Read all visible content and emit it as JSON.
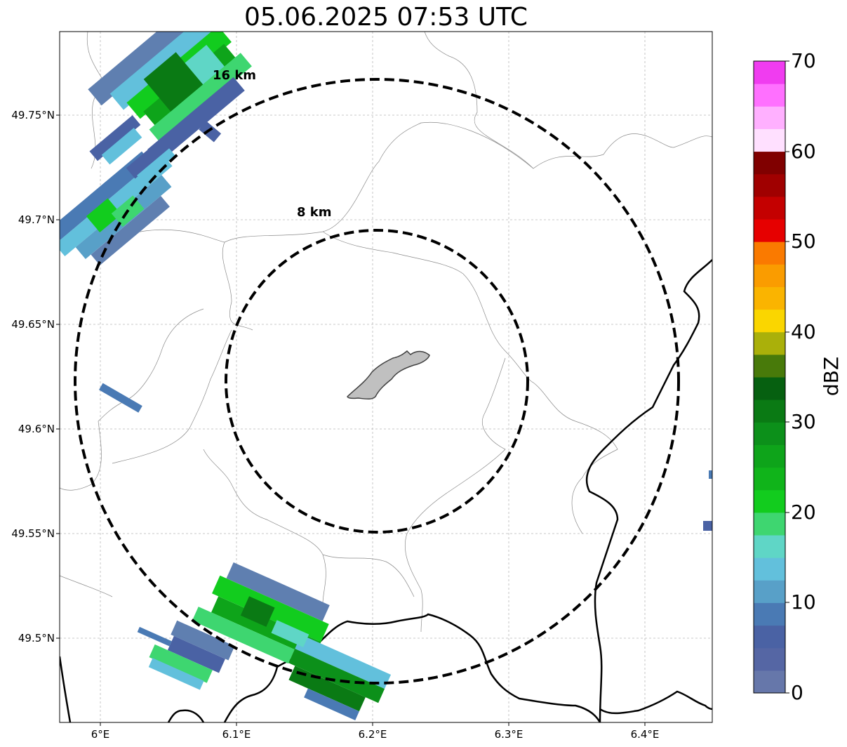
{
  "title": "05.06.2025 07:53 UTC",
  "map": {
    "lat_ticks": [
      "49.75°N",
      "49.7°N",
      "49.65°N",
      "49.6°N",
      "49.55°N",
      "49.5°N"
    ],
    "lon_ticks": [
      "6°E",
      "6.1°E",
      "6.2°E",
      "6.3°E",
      "6.4°E"
    ],
    "rings": [
      {
        "label": "16 km",
        "radius_km": 16
      },
      {
        "label": "8 km",
        "radius_km": 8
      }
    ],
    "center": {
      "lat": 49.623,
      "lon": 6.203
    },
    "center_area_fill": "#c0c0c0",
    "ring_style": "dashed"
  },
  "colorbar": {
    "label": "dBZ",
    "min": 0,
    "max": 70,
    "step": 2.5,
    "tick_labels": [
      "70",
      "60",
      "50",
      "40",
      "30",
      "20",
      "10",
      "0"
    ],
    "colors": [
      "#6677aa",
      "#5566a4",
      "#4a62a4",
      "#4a7ab4",
      "#58a0c8",
      "#62c0dc",
      "#5fd6c6",
      "#3ed670",
      "#12cc1e",
      "#10b41a",
      "#0ea41a",
      "#0c901a",
      "#0a7a14",
      "#066010",
      "#487a0a",
      "#aab00a",
      "#fad600",
      "#fab400",
      "#fa9c00",
      "#fa7a00",
      "#e60000",
      "#c40000",
      "#a00000",
      "#800000",
      "#ffe0ff",
      "#ffb0ff",
      "#ff70ff",
      "#f03cf0"
    ]
  }
}
